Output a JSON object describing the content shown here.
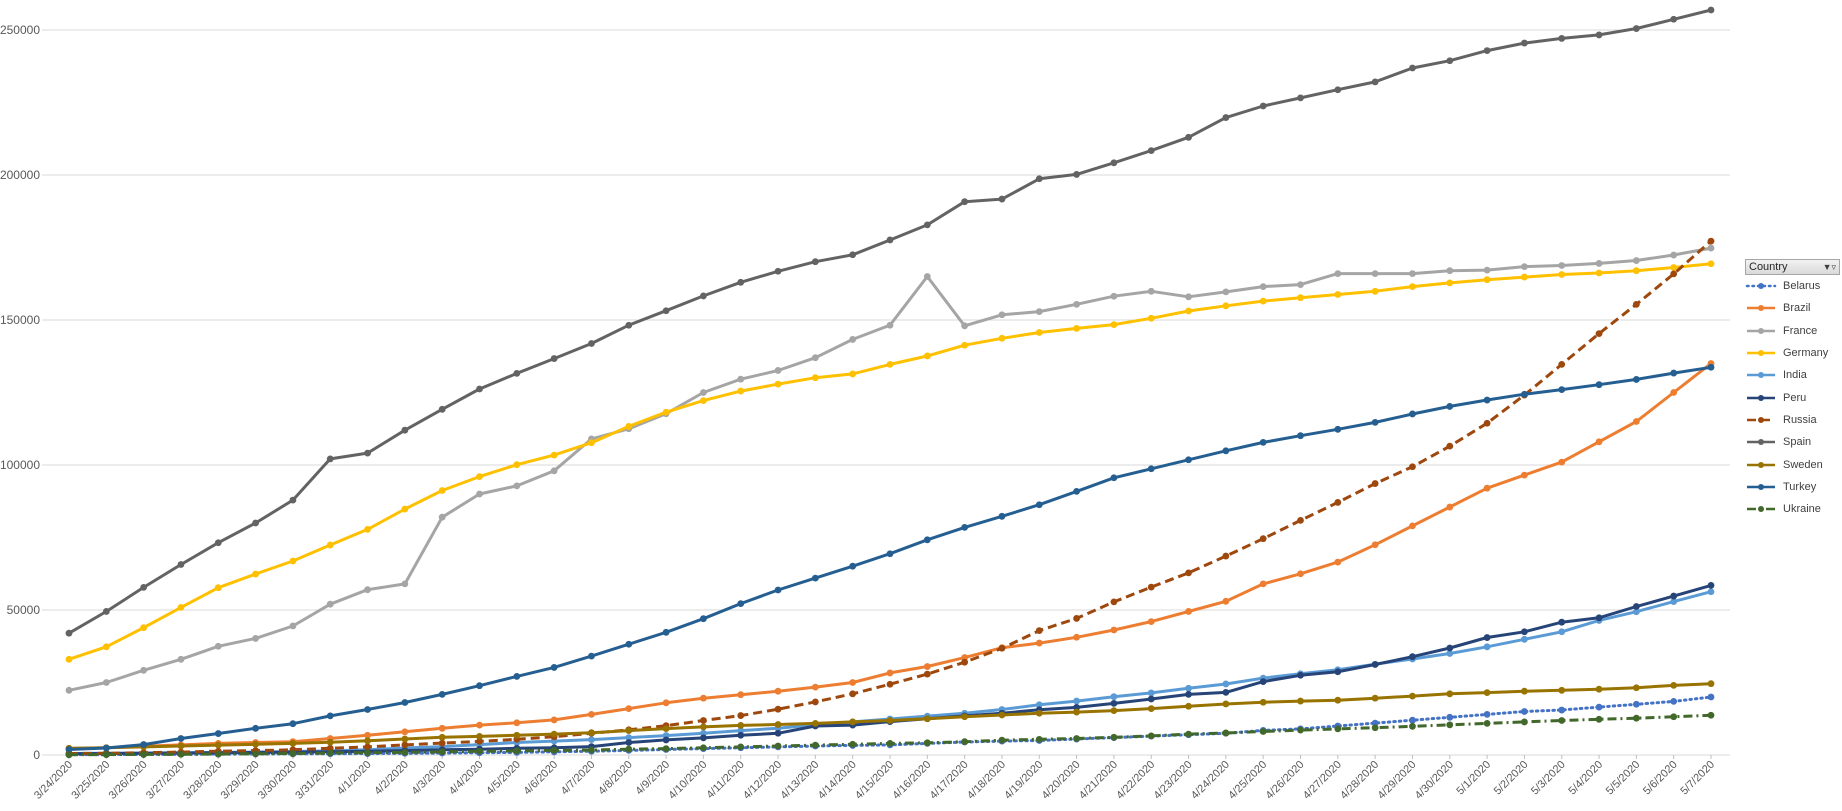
{
  "legend": {
    "header": "Country",
    "filter_icon": "filter-dropdown-icon"
  },
  "chart_data": {
    "type": "line",
    "title": "",
    "xlabel": "",
    "ylabel": "",
    "ylim": [
      0,
      250000
    ],
    "y_ticks": [
      "0",
      "50000",
      "100000",
      "150000",
      "200000",
      "250000"
    ],
    "y_tick_values": [
      0,
      50000,
      100000,
      150000,
      200000,
      250000
    ],
    "grid": true,
    "legend_position": "right",
    "x": [
      "3/24/2020",
      "3/25/2020",
      "3/26/2020",
      "3/27/2020",
      "3/28/2020",
      "3/29/2020",
      "3/30/2020",
      "3/31/2020",
      "4/1/2020",
      "4/2/2020",
      "4/3/2020",
      "4/4/2020",
      "4/5/2020",
      "4/6/2020",
      "4/7/2020",
      "4/8/2020",
      "4/9/2020",
      "4/10/2020",
      "4/11/2020",
      "4/12/2020",
      "4/13/2020",
      "4/14/2020",
      "4/15/2020",
      "4/16/2020",
      "4/17/2020",
      "4/18/2020",
      "4/19/2020",
      "4/20/2020",
      "4/21/2020",
      "4/22/2020",
      "4/23/2020",
      "4/24/2020",
      "4/25/2020",
      "4/26/2020",
      "4/27/2020",
      "4/28/2020",
      "4/29/2020",
      "4/30/2020",
      "5/1/2020",
      "5/2/2020",
      "5/3/2020",
      "5/4/2020",
      "5/5/2020",
      "5/6/2020",
      "5/7/2020"
    ],
    "series": [
      {
        "name": "Belarus",
        "color": "#4472c4",
        "dash": "dot",
        "values": [
          100,
          150,
          200,
          250,
          300,
          350,
          400,
          450,
          500,
          600,
          700,
          800,
          900,
          1100,
          1300,
          1600,
          1900,
          2200,
          2500,
          2800,
          3100,
          3300,
          3500,
          4000,
          4500,
          4800,
          5000,
          5500,
          6000,
          6500,
          7000,
          7500,
          8500,
          9000,
          10000,
          11000,
          12000,
          13000,
          14000,
          15000,
          15500,
          16500,
          17500,
          18500,
          20000
        ]
      },
      {
        "name": "Brazil",
        "color": "#ed7d31",
        "dash": "solid",
        "values": [
          2200,
          2500,
          3000,
          3500,
          4000,
          4300,
          4600,
          5700,
          6800,
          8000,
          9200,
          10300,
          11100,
          12100,
          14000,
          16000,
          18000,
          19600,
          20800,
          22000,
          23400,
          25000,
          28300,
          30500,
          33600,
          37000,
          38600,
          40600,
          43100,
          46000,
          49500,
          53000,
          59000,
          62500,
          66500,
          72500,
          79000,
          85500,
          92000,
          96500,
          101000,
          108000,
          115000,
          125000,
          135000
        ]
      },
      {
        "name": "France",
        "color": "#a5a5a5",
        "dash": "solid",
        "values": [
          22300,
          25000,
          29200,
          33000,
          37500,
          40200,
          44500,
          52000,
          57000,
          59000,
          82000,
          90000,
          92800,
          98000,
          109000,
          112500,
          117700,
          125000,
          129600,
          132600,
          137000,
          143300,
          148200,
          165000,
          148000,
          151800,
          152900,
          155400,
          158200,
          159900,
          158000,
          159700,
          161500,
          162200,
          166000,
          166000,
          166000,
          167000,
          167200,
          168400,
          168800,
          169500,
          170500,
          172400,
          174800
        ]
      },
      {
        "name": "Germany",
        "color": "#ffc000",
        "dash": "solid",
        "values": [
          33000,
          37300,
          43900,
          50900,
          57700,
          62400,
          66900,
          72400,
          77800,
          84800,
          91200,
          96000,
          100100,
          103400,
          107700,
          113300,
          118200,
          122200,
          125500,
          127900,
          130100,
          131400,
          134700,
          137600,
          141300,
          143700,
          145700,
          147100,
          148400,
          150600,
          153100,
          154900,
          156500,
          157700,
          158800,
          159900,
          161500,
          162800,
          163900,
          164800,
          165700,
          166200,
          167000,
          168100,
          169400
        ]
      },
      {
        "name": "India",
        "color": "#5b9bd5",
        "dash": "solid",
        "values": [
          500,
          600,
          700,
          800,
          900,
          1000,
          1200,
          1400,
          1800,
          2400,
          2900,
          3600,
          4300,
          4800,
          5300,
          6000,
          6700,
          7500,
          8400,
          9200,
          10400,
          11400,
          12400,
          13400,
          14400,
          15700,
          17300,
          18600,
          20100,
          21400,
          23000,
          24500,
          26500,
          28000,
          29400,
          31300,
          33100,
          35000,
          37300,
          39900,
          42500,
          46400,
          49400,
          52900,
          56300
        ]
      },
      {
        "name": "Peru",
        "color": "#264478",
        "dash": "solid",
        "values": [
          400,
          500,
          600,
          700,
          800,
          900,
          1000,
          1100,
          1300,
          1500,
          1800,
          2000,
          2300,
          2500,
          2900,
          4300,
          5200,
          5900,
          6800,
          7500,
          10000,
          10300,
          11500,
          12500,
          13500,
          14400,
          15600,
          16400,
          17800,
          19300,
          20900,
          21600,
          25300,
          27500,
          28700,
          31200,
          33900,
          36900,
          40500,
          42500,
          45800,
          47300,
          51200,
          54800,
          58500
        ]
      },
      {
        "name": "Russia",
        "color": "#9e480e",
        "dash": "dash",
        "values": [
          500,
          600,
          800,
          1000,
          1300,
          1500,
          1800,
          2300,
          2800,
          3500,
          4100,
          4700,
          5400,
          6300,
          7500,
          8700,
          10100,
          11900,
          13600,
          15800,
          18300,
          21100,
          24400,
          27900,
          32000,
          36800,
          42900,
          47100,
          52800,
          57900,
          62800,
          68600,
          74600,
          80900,
          87100,
          93600,
          99400,
          106500,
          114400,
          124100,
          134700,
          145300,
          155400,
          165900,
          177200
        ]
      },
      {
        "name": "Spain",
        "color": "#636363",
        "dash": "solid",
        "values": [
          42000,
          49500,
          57800,
          65700,
          73200,
          80000,
          87900,
          102100,
          104100,
          112000,
          119200,
          126200,
          131600,
          136700,
          141900,
          148200,
          153200,
          158300,
          163000,
          166800,
          170100,
          172500,
          177600,
          182800,
          190800,
          191700,
          198700,
          200200,
          204200,
          208400,
          213000,
          219800,
          223800,
          226600,
          229400,
          232100,
          236900,
          239400,
          242900,
          245500,
          247100,
          248300,
          250500,
          253700,
          256900
        ]
      },
      {
        "name": "Sweden",
        "color": "#997300",
        "dash": "solid",
        "values": [
          2300,
          2500,
          2800,
          3100,
          3400,
          3700,
          4000,
          4400,
          4900,
          5500,
          6100,
          6400,
          6800,
          7200,
          7700,
          8400,
          9100,
          9700,
          10200,
          10500,
          10900,
          11400,
          11900,
          12500,
          13200,
          13800,
          14400,
          14800,
          15300,
          16000,
          16800,
          17600,
          18200,
          18600,
          18900,
          19600,
          20300,
          21100,
          21500,
          22000,
          22300,
          22700,
          23200,
          24000,
          24600
        ]
      },
      {
        "name": "Turkey",
        "color": "#255e91",
        "dash": "solid",
        "values": [
          1900,
          2400,
          3600,
          5700,
          7400,
          9200,
          10800,
          13500,
          15700,
          18100,
          20900,
          23900,
          27100,
          30200,
          34100,
          38200,
          42300,
          47000,
          52200,
          56900,
          61000,
          65100,
          69400,
          74200,
          78500,
          82300,
          86300,
          90900,
          95600,
          98700,
          101800,
          104900,
          107800,
          110100,
          112300,
          114700,
          117600,
          120200,
          122400,
          124400,
          126000,
          127700,
          129500,
          131700,
          133700
        ]
      },
      {
        "name": "Ukraine",
        "color": "#43682b",
        "dash": "dashdot",
        "values": [
          100,
          150,
          200,
          250,
          300,
          400,
          500,
          700,
          800,
          900,
          1100,
          1300,
          1400,
          1600,
          1700,
          2000,
          2200,
          2500,
          2800,
          3100,
          3400,
          3700,
          4000,
          4200,
          4600,
          5100,
          5400,
          5700,
          6100,
          6600,
          7200,
          7600,
          8100,
          8600,
          9000,
          9400,
          9900,
          10400,
          10900,
          11400,
          11900,
          12300,
          12700,
          13200,
          13700
        ]
      }
    ]
  }
}
